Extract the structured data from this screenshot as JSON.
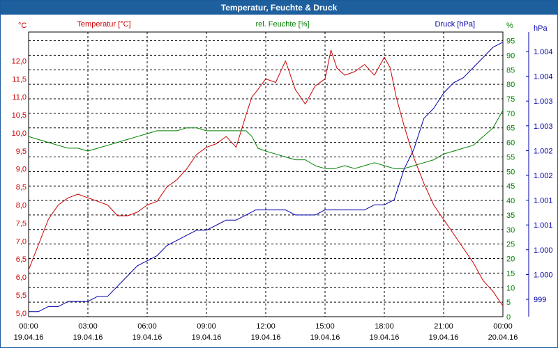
{
  "window": {
    "title": "Temperatur, Feuchte & Druck"
  },
  "colors": {
    "temperature": "#cc0000",
    "humidity": "#008000",
    "pressure": "#0000aa",
    "title_bar": "#1e5f9e",
    "grid": "#000000"
  },
  "chart_data": {
    "type": "line",
    "title": "Temperatur, Feuchte & Druck",
    "grid": true,
    "x_ticks": [
      {
        "time": "00:00",
        "date": "19.04.16"
      },
      {
        "time": "03:00",
        "date": "19.04.16"
      },
      {
        "time": "06:00",
        "date": "19.04.16"
      },
      {
        "time": "09:00",
        "date": "19.04.16"
      },
      {
        "time": "12:00",
        "date": "19.04.16"
      },
      {
        "time": "15:00",
        "date": "19.04.16"
      },
      {
        "time": "18:00",
        "date": "19.04.16"
      },
      {
        "time": "21:00",
        "date": "19.04.16"
      },
      {
        "time": "00:00",
        "date": "20.04.16"
      }
    ],
    "x_hours_range": [
      0,
      24
    ],
    "axes": {
      "left": {
        "unit": "°C",
        "ylim": [
          4.9,
          12.8
        ],
        "ticks": [
          "5,0",
          "5,5",
          "6,0",
          "6,5",
          "7,0",
          "7,5",
          "8,0",
          "8,5",
          "9,0",
          "9,5",
          "10,0",
          "10,5",
          "11,0",
          "11,5",
          "12,0"
        ]
      },
      "right1": {
        "unit": "%",
        "ylim": [
          0,
          98
        ],
        "ticks": [
          "0",
          "5",
          "10",
          "15",
          "20",
          "25",
          "30",
          "35",
          "40",
          "45",
          "50",
          "55",
          "60",
          "65",
          "70",
          "75",
          "80",
          "85",
          "90",
          "95"
        ]
      },
      "right2": {
        "unit": "hPa",
        "ticks": [
          "999",
          "1.000",
          "1.000",
          "1.001",
          "1.001",
          "1.002",
          "1.002",
          "1.003",
          "1.003",
          "1.004",
          "1.004"
        ]
      }
    },
    "series": [
      {
        "name": "Temperatur [°C]",
        "axis": "left",
        "x": [
          0,
          0.5,
          1,
          1.5,
          2,
          2.5,
          3,
          3.5,
          4,
          4.5,
          5,
          5.5,
          6,
          6.5,
          7,
          7.5,
          8,
          8.5,
          9,
          9.5,
          10,
          10.5,
          11,
          11.3,
          11.6,
          12,
          12.5,
          13,
          13.5,
          14,
          14.5,
          15,
          15.3,
          15.6,
          16,
          16.5,
          17,
          17.5,
          18,
          18.3,
          18.6,
          19,
          19.5,
          20,
          20.5,
          21,
          21.5,
          22,
          22.5,
          23,
          23.5,
          24
        ],
        "values": [
          6.2,
          6.9,
          7.6,
          8.0,
          8.2,
          8.3,
          8.2,
          8.1,
          8.0,
          7.7,
          7.7,
          7.8,
          8.0,
          8.1,
          8.5,
          8.7,
          9.0,
          9.4,
          9.6,
          9.7,
          9.9,
          9.6,
          10.5,
          11.0,
          11.2,
          11.5,
          11.4,
          12.0,
          11.2,
          10.8,
          11.3,
          11.5,
          12.3,
          11.8,
          11.6,
          11.7,
          11.9,
          11.6,
          12.1,
          11.8,
          11.0,
          10.2,
          9.3,
          8.6,
          8.0,
          7.6,
          7.2,
          6.8,
          6.4,
          5.9,
          5.6,
          5.2
        ]
      },
      {
        "name": "rel. Feuchte [%]",
        "axis": "right1",
        "x": [
          0,
          0.5,
          1,
          1.5,
          2,
          2.5,
          3,
          3.5,
          4,
          4.5,
          5,
          5.5,
          6,
          6.5,
          7,
          7.5,
          8,
          8.5,
          9,
          9.5,
          10,
          10.5,
          11,
          11.3,
          11.6,
          12,
          12.5,
          13,
          13.5,
          14,
          14.5,
          15,
          15.5,
          16,
          16.5,
          17,
          17.5,
          18,
          18.5,
          19,
          19.5,
          20,
          20.5,
          21,
          21.5,
          22,
          22.5,
          23,
          23.5,
          24
        ],
        "values": [
          62,
          61,
          60,
          59,
          58,
          58,
          57,
          58,
          59,
          60,
          61,
          62,
          63,
          64,
          64,
          64,
          65,
          65,
          64,
          64,
          64,
          64,
          64,
          62,
          58,
          57,
          56,
          55,
          54,
          54,
          52,
          51,
          51,
          52,
          51,
          52,
          53,
          52,
          51,
          51,
          52,
          53,
          54,
          56,
          57,
          58,
          59,
          62,
          65,
          71
        ]
      },
      {
        "name": "Druck [hPa]",
        "axis": "right2",
        "x": [
          0,
          0.5,
          1,
          1.5,
          2,
          2.5,
          3,
          3.5,
          4,
          4.5,
          5,
          5.5,
          6,
          6.5,
          7,
          7.5,
          8,
          8.5,
          9,
          9.5,
          10,
          10.5,
          11,
          11.5,
          12,
          12.5,
          13,
          13.5,
          14,
          14.5,
          15,
          15.5,
          16,
          16.5,
          17,
          17.5,
          18,
          18.5,
          19,
          19.5,
          20,
          20.5,
          21,
          21.5,
          22,
          22.5,
          23,
          23.5,
          24
        ],
        "values": [
          999.0,
          999.0,
          999.1,
          999.1,
          999.2,
          999.2,
          999.2,
          999.3,
          999.3,
          999.5,
          999.7,
          999.9,
          1000.0,
          1000.1,
          1000.3,
          1000.4,
          1000.5,
          1000.6,
          1000.6,
          1000.7,
          1000.8,
          1000.8,
          1000.9,
          1001.0,
          1001.0,
          1001.0,
          1001.0,
          1000.9,
          1000.9,
          1000.9,
          1001.0,
          1001.0,
          1001.0,
          1001.0,
          1001.0,
          1001.1,
          1001.1,
          1001.2,
          1001.8,
          1002.2,
          1002.8,
          1003.0,
          1003.3,
          1003.5,
          1003.6,
          1003.8,
          1004.0,
          1004.2,
          1004.3
        ]
      }
    ]
  }
}
